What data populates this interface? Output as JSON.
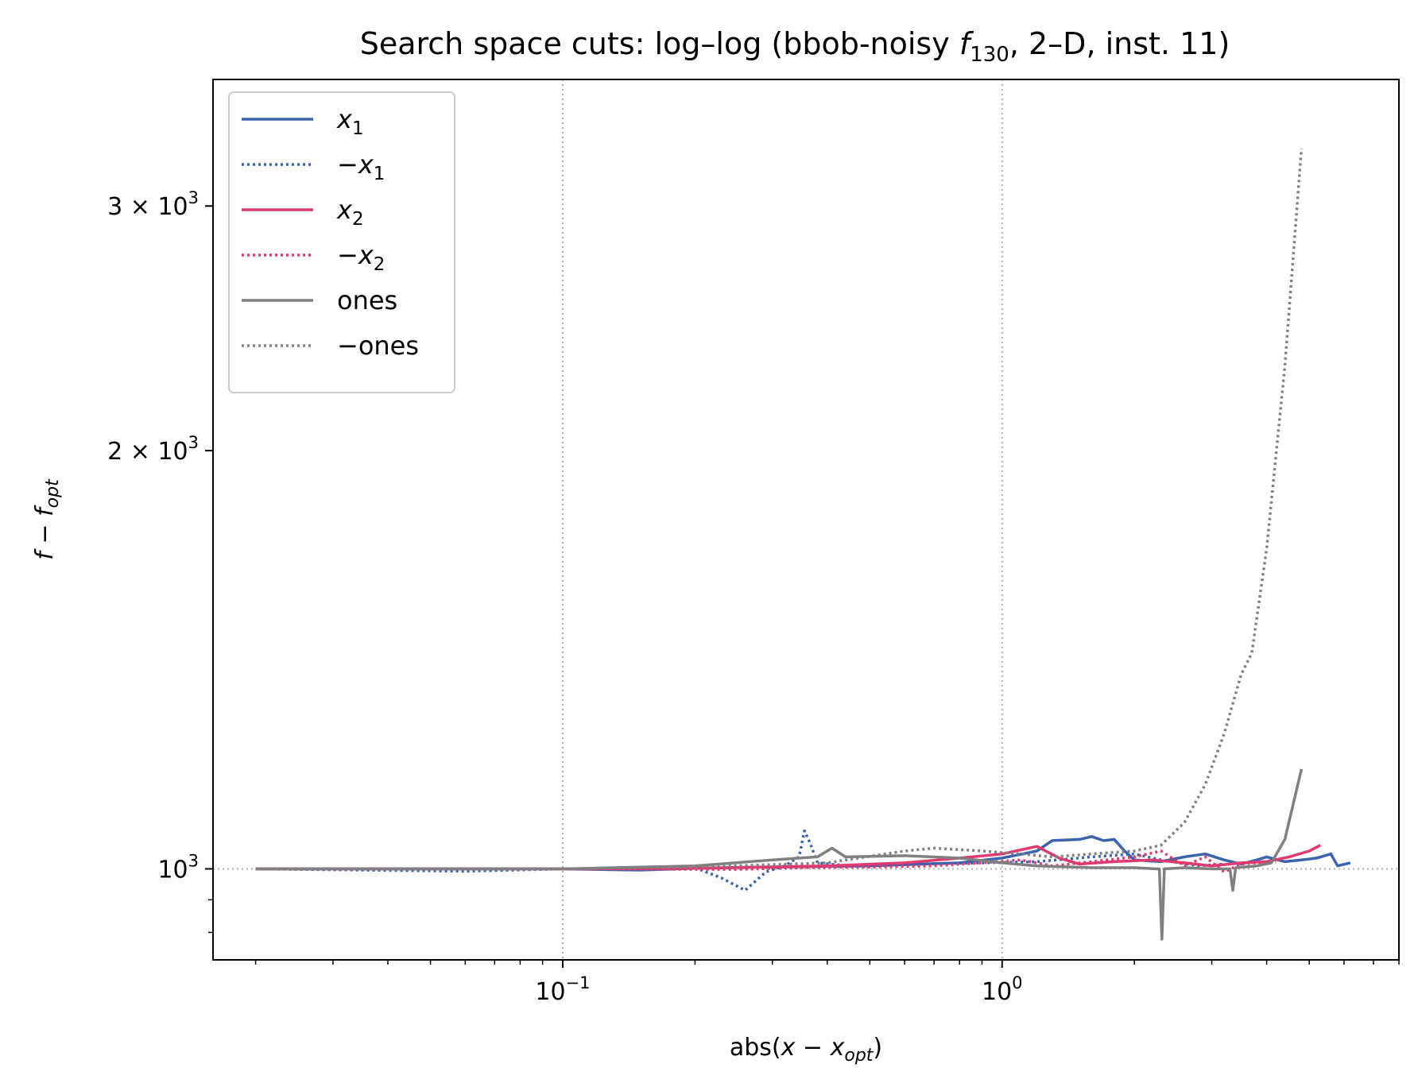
{
  "chart_data": {
    "type": "line",
    "title": "Search space cuts: log–log (bbob-noisy f130, 2–D, inst. 11)",
    "title_parts": {
      "prefix": "Search space cuts: log–log (bbob-noisy ",
      "f": "f",
      "f_sub": "130",
      "suffix": ", 2–D, inst. 11)"
    },
    "xlabel": "abs(x − x_opt)",
    "xlabel_parts": {
      "prefix": "abs(",
      "x": "x",
      "minus": " − ",
      "x2": "x",
      "sub": "opt",
      "suffix": ")"
    },
    "ylabel": "f − f_opt",
    "ylabel_parts": {
      "f": "f",
      "minus": " − ",
      "f2": "f",
      "sub": "opt"
    },
    "x_scale": "log",
    "y_scale": "log",
    "xlim": [
      0.016,
      8.0
    ],
    "ylim": [
      860,
      3700
    ],
    "x_ticks": [
      {
        "value": 0.1,
        "base": "10",
        "exp": "−1"
      },
      {
        "value": 1.0,
        "base": "10",
        "exp": "0"
      }
    ],
    "y_ticks": [
      {
        "value": 1000,
        "mant": "",
        "base": "10",
        "exp": "3"
      },
      {
        "value": 2000,
        "mant": "2 × ",
        "base": "10",
        "exp": "3"
      },
      {
        "value": 3000,
        "mant": "3 × ",
        "base": "10",
        "exp": "3"
      }
    ],
    "grid": "dotted, at major ticks",
    "legend_position": "upper-left",
    "reference_line_y": 1000,
    "series": [
      {
        "name": "x1",
        "label_main": "x",
        "label_sub": "1",
        "label_neg": false,
        "color": "#3a64ad",
        "style": "solid",
        "points": [
          [
            0.02,
            1000
          ],
          [
            0.05,
            1000
          ],
          [
            0.1,
            1000
          ],
          [
            0.15,
            998
          ],
          [
            0.2,
            1001
          ],
          [
            0.3,
            1003
          ],
          [
            0.5,
            1005
          ],
          [
            0.8,
            1010
          ],
          [
            1.0,
            1018
          ],
          [
            1.2,
            1030
          ],
          [
            1.3,
            1048
          ],
          [
            1.5,
            1050
          ],
          [
            1.6,
            1055
          ],
          [
            1.7,
            1048
          ],
          [
            1.8,
            1050
          ],
          [
            1.9,
            1030
          ],
          [
            2.0,
            1015
          ],
          [
            2.3,
            1012
          ],
          [
            2.6,
            1020
          ],
          [
            2.9,
            1025
          ],
          [
            3.2,
            1015
          ],
          [
            3.5,
            1008
          ],
          [
            3.8,
            1015
          ],
          [
            4.0,
            1020
          ],
          [
            4.4,
            1012
          ],
          [
            4.8,
            1015
          ],
          [
            5.2,
            1018
          ],
          [
            5.6,
            1025
          ],
          [
            5.8,
            1005
          ],
          [
            6.2,
            1010
          ]
        ]
      },
      {
        "name": "−x1",
        "label_main": "x",
        "label_sub": "1",
        "label_neg": true,
        "color": "#3a64ad",
        "style": "dotted",
        "points": [
          [
            0.02,
            1000
          ],
          [
            0.06,
            996
          ],
          [
            0.1,
            1000
          ],
          [
            0.2,
            1002
          ],
          [
            0.23,
            985
          ],
          [
            0.26,
            965
          ],
          [
            0.29,
            995
          ],
          [
            0.32,
            1005
          ],
          [
            0.345,
            1020
          ],
          [
            0.355,
            1065
          ],
          [
            0.365,
            1045
          ],
          [
            0.38,
            1010
          ],
          [
            0.45,
            1005
          ],
          [
            0.6,
            1008
          ],
          [
            0.9,
            1010
          ],
          [
            1.2,
            1012
          ],
          [
            1.6,
            1020
          ],
          [
            2.0,
            1025
          ],
          [
            2.3,
            1015
          ],
          [
            2.8,
            1005
          ],
          [
            3.2,
            1008
          ]
        ]
      },
      {
        "name": "x2",
        "label_main": "x",
        "label_sub": "2",
        "label_neg": false,
        "color": "#e23a6e",
        "style": "solid",
        "points": [
          [
            0.02,
            1000
          ],
          [
            0.1,
            1000
          ],
          [
            0.2,
            1001
          ],
          [
            0.4,
            1005
          ],
          [
            0.6,
            1010
          ],
          [
            0.8,
            1018
          ],
          [
            1.0,
            1025
          ],
          [
            1.2,
            1038
          ],
          [
            1.35,
            1018
          ],
          [
            1.5,
            1008
          ],
          [
            1.8,
            1012
          ],
          [
            2.2,
            1015
          ],
          [
            2.6,
            1010
          ],
          [
            3.0,
            1005
          ],
          [
            3.5,
            1010
          ],
          [
            4.0,
            1012
          ],
          [
            4.5,
            1020
          ],
          [
            5.0,
            1030
          ],
          [
            5.3,
            1040
          ]
        ]
      },
      {
        "name": "−x2",
        "label_main": "x",
        "label_sub": "2",
        "label_neg": true,
        "color": "#e23a6e",
        "style": "dotted",
        "points": [
          [
            0.02,
            1000
          ],
          [
            0.1,
            1000
          ],
          [
            0.25,
            999
          ],
          [
            0.35,
            1002
          ],
          [
            0.5,
            1003
          ],
          [
            0.7,
            1005
          ],
          [
            0.9,
            1010
          ],
          [
            1.1,
            1015
          ],
          [
            1.3,
            1005
          ],
          [
            1.6,
            1012
          ],
          [
            2.0,
            1020
          ],
          [
            2.3,
            1030
          ],
          [
            2.6,
            1005
          ],
          [
            2.9,
            1020
          ],
          [
            3.2,
            995
          ],
          [
            3.5,
            1008
          ],
          [
            3.8,
            1010
          ],
          [
            4.2,
            1012
          ]
        ]
      },
      {
        "name": "ones",
        "label_main": "ones",
        "label_sub": "",
        "label_neg": false,
        "color": "#808080",
        "style": "solid",
        "points": [
          [
            0.02,
            1000
          ],
          [
            0.1,
            1000
          ],
          [
            0.2,
            1005
          ],
          [
            0.3,
            1015
          ],
          [
            0.38,
            1020
          ],
          [
            0.41,
            1035
          ],
          [
            0.44,
            1020
          ],
          [
            0.6,
            1022
          ],
          [
            0.8,
            1018
          ],
          [
            1.0,
            1010
          ],
          [
            1.2,
            1005
          ],
          [
            1.6,
            1002
          ],
          [
            2.0,
            1002
          ],
          [
            2.25,
            1000
          ],
          [
            2.28,
            1000
          ],
          [
            2.31,
            890
          ],
          [
            2.34,
            1000
          ],
          [
            2.6,
            1002
          ],
          [
            3.0,
            1000
          ],
          [
            3.3,
            1000
          ],
          [
            3.35,
            965
          ],
          [
            3.4,
            1002
          ],
          [
            3.8,
            1005
          ],
          [
            4.1,
            1010
          ],
          [
            4.4,
            1050
          ],
          [
            4.8,
            1180
          ]
        ]
      },
      {
        "name": "−ones",
        "label_main": "ones",
        "label_sub": "",
        "label_neg": true,
        "color": "#808080",
        "style": "dotted",
        "points": [
          [
            0.02,
            1000
          ],
          [
            0.1,
            1000
          ],
          [
            0.2,
            1003
          ],
          [
            0.4,
            1010
          ],
          [
            0.6,
            1030
          ],
          [
            0.7,
            1035
          ],
          [
            0.9,
            1030
          ],
          [
            1.1,
            1025
          ],
          [
            1.3,
            1020
          ],
          [
            1.6,
            1025
          ],
          [
            2.0,
            1030
          ],
          [
            2.3,
            1040
          ],
          [
            2.6,
            1080
          ],
          [
            2.9,
            1150
          ],
          [
            3.2,
            1250
          ],
          [
            3.5,
            1380
          ],
          [
            3.7,
            1430
          ],
          [
            4.0,
            1700
          ],
          [
            4.4,
            2300
          ],
          [
            4.8,
            3300
          ]
        ]
      }
    ]
  }
}
